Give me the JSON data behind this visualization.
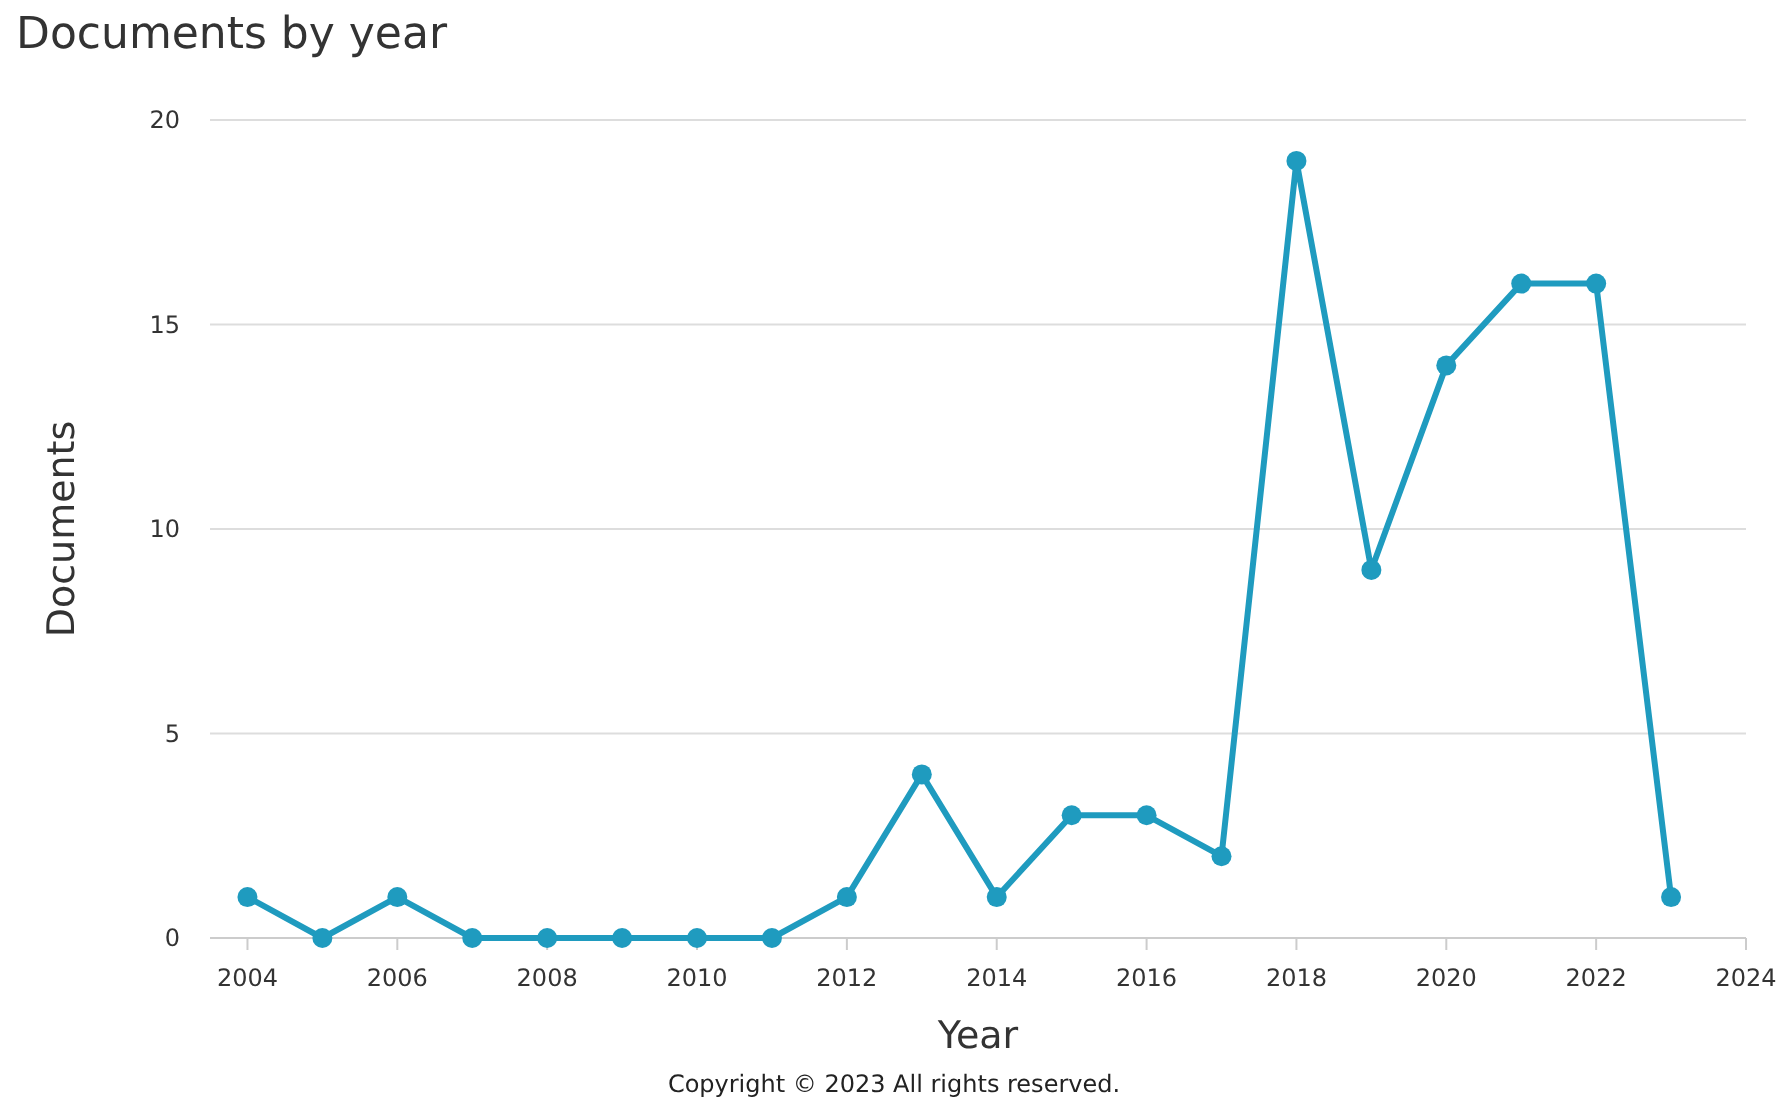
{
  "chart_data": {
    "type": "line",
    "title": "Documents by year",
    "xlabel": "Year",
    "ylabel": "Documents",
    "x": [
      2004,
      2005,
      2006,
      2007,
      2008,
      2009,
      2010,
      2011,
      2012,
      2013,
      2014,
      2015,
      2016,
      2017,
      2018,
      2019,
      2020,
      2021,
      2022,
      2023
    ],
    "series": [
      {
        "color": "#1f9bbf",
        "values": [
          1,
          0,
          1,
          0,
          0,
          0,
          0,
          0,
          1,
          4,
          1,
          3,
          3,
          2,
          19,
          9,
          14,
          16,
          16,
          1
        ]
      }
    ],
    "xlim": [
      2003.5,
      2024
    ],
    "xticks": [
      2004,
      2006,
      2008,
      2010,
      2012,
      2014,
      2016,
      2018,
      2020,
      2022,
      2024
    ],
    "ylim": [
      0,
      20
    ],
    "yticks": [
      0,
      5,
      10,
      15,
      20
    ],
    "grid": "y",
    "marker": "circle",
    "line_style": "solid",
    "annotations": [
      "Copyright © 2023 All rights reserved."
    ]
  }
}
